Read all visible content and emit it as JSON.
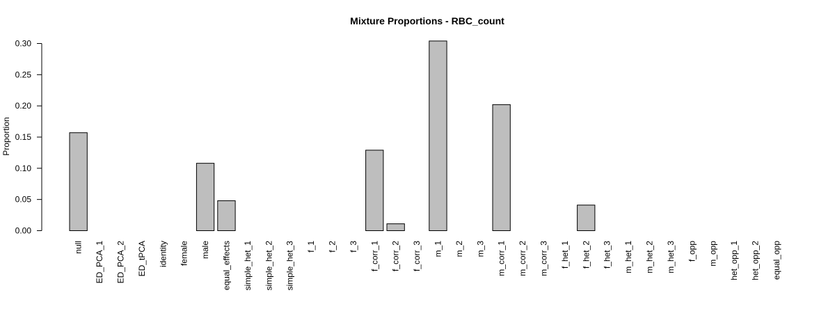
{
  "chart_data": {
    "type": "bar",
    "title": "Mixture Proportions - RBC_count",
    "xlabel": "",
    "ylabel": "Proportion",
    "ylim": [
      0,
      0.3
    ],
    "yticks": [
      0.0,
      0.05,
      0.1,
      0.15,
      0.2,
      0.25,
      0.3
    ],
    "ytick_labels": [
      "0.00",
      "0.05",
      "0.10",
      "0.15",
      "0.20",
      "0.25",
      "0.30"
    ],
    "grid": false,
    "bar_color": "#bebebe",
    "categories": [
      "null",
      "ED_PCA_1",
      "ED_PCA_2",
      "ED_tPCA",
      "identity",
      "female",
      "male",
      "equal_effects",
      "simple_het_1",
      "simple_het_2",
      "simple_het_3",
      "f_1",
      "f_2",
      "f_3",
      "f_corr_1",
      "f_corr_2",
      "f_corr_3",
      "m_1",
      "m_2",
      "m_3",
      "m_corr_1",
      "m_corr_2",
      "m_corr_3",
      "f_het_1",
      "f_het_2",
      "f_het_3",
      "m_het_1",
      "m_het_2",
      "m_het_3",
      "f_opp",
      "m_opp",
      "het_opp_1",
      "het_opp_2",
      "equal_opp"
    ],
    "values": [
      0.157,
      0,
      0,
      0,
      0,
      0,
      0.108,
      0.048,
      0,
      0,
      0,
      0,
      0,
      0,
      0.129,
      0.011,
      0,
      0.304,
      0,
      0,
      0.202,
      0,
      0,
      0,
      0.041,
      0,
      0,
      0,
      0,
      0,
      0,
      0,
      0,
      0
    ]
  }
}
